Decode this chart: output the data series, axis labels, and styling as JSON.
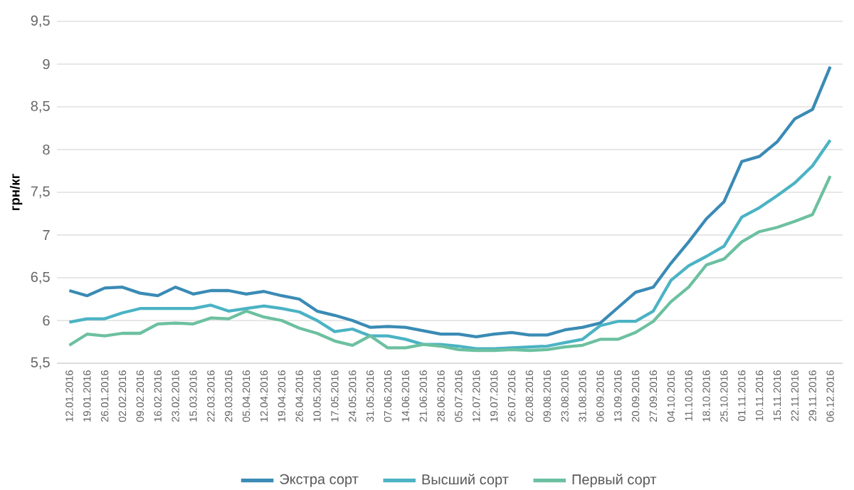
{
  "chart_data": {
    "type": "line",
    "ylabel": "грн/кг",
    "categories": [
      "12.01.2016",
      "19.01.2016",
      "26.01.2016",
      "02.02.2016",
      "09.02.2016",
      "16.02.2016",
      "23.02.2016",
      "15.03.2016",
      "22.03.2016",
      "29.03.2016",
      "05.04.2016",
      "12.04.2016",
      "19.04.2016",
      "26.04.2016",
      "10.05.2016",
      "17.05.2016",
      "24.05.2016",
      "31.05.2016",
      "07.06.2016",
      "14.06.2016",
      "21.06.2016",
      "28.06.2016",
      "05.07.2016",
      "12.07.2016",
      "19.07.2016",
      "26.07.2016",
      "02.08.2016",
      "09.08.2016",
      "23.08.2016",
      "31.08.2016",
      "06.09.2016",
      "13.09.2016",
      "20.09.2016",
      "27.09.2016",
      "04.10.2016",
      "11.10.2016",
      "18.10.2016",
      "25.10.2016",
      "01.11.2016",
      "10.11.2016",
      "15.11.2016",
      "22.11.2016",
      "29.11.2016",
      "06.12.2016"
    ],
    "series": [
      {
        "name": "Экстра сорт",
        "color": "#3a8bb5",
        "values": [
          6.35,
          6.29,
          6.38,
          6.39,
          6.32,
          6.29,
          6.39,
          6.31,
          6.35,
          6.35,
          6.31,
          6.34,
          6.29,
          6.25,
          6.11,
          6.06,
          6.0,
          5.92,
          5.93,
          5.92,
          5.88,
          5.84,
          5.84,
          5.81,
          5.84,
          5.86,
          5.83,
          5.83,
          5.89,
          5.92,
          5.97,
          6.15,
          6.33,
          6.39,
          6.67,
          6.92,
          7.19,
          7.39,
          7.86,
          7.92,
          8.09,
          8.36,
          8.47,
          8.97
        ]
      },
      {
        "name": "Высший сорт",
        "color": "#4bb3c4",
        "values": [
          5.98,
          6.02,
          6.02,
          6.09,
          6.14,
          6.14,
          6.14,
          6.14,
          6.18,
          6.11,
          6.14,
          6.17,
          6.14,
          6.1,
          6.0,
          5.87,
          5.9,
          5.82,
          5.82,
          5.78,
          5.72,
          5.72,
          5.7,
          5.67,
          5.67,
          5.68,
          5.69,
          5.7,
          5.74,
          5.78,
          5.94,
          5.99,
          5.99,
          6.11,
          6.47,
          6.64,
          6.75,
          6.87,
          7.21,
          7.32,
          7.46,
          7.61,
          7.81,
          8.11
        ]
      },
      {
        "name": "Первый сорт",
        "color": "#6cc0a0",
        "values": [
          5.71,
          5.84,
          5.82,
          5.85,
          5.85,
          5.96,
          5.97,
          5.96,
          6.03,
          6.02,
          6.11,
          6.04,
          6.0,
          5.91,
          5.85,
          5.76,
          5.71,
          5.82,
          5.68,
          5.68,
          5.72,
          5.7,
          5.66,
          5.65,
          5.65,
          5.66,
          5.65,
          5.66,
          5.69,
          5.71,
          5.78,
          5.78,
          5.86,
          5.99,
          6.22,
          6.39,
          6.65,
          6.72,
          6.92,
          7.04,
          7.09,
          7.16,
          7.24,
          7.69
        ]
      }
    ],
    "ylim": [
      5.5,
      9.5
    ],
    "yticks": [
      {
        "value": 5.5,
        "label": "5,5"
      },
      6,
      {
        "value": 6.5,
        "label": "6,5"
      },
      7,
      {
        "value": 7.5,
        "label": "7,5"
      },
      8,
      {
        "value": 8.5,
        "label": "8,5"
      },
      9,
      {
        "value": 9.5,
        "label": "9,5"
      }
    ],
    "grid": "y",
    "legend": "bottom",
    "marker": "none",
    "line_style": "solid"
  }
}
